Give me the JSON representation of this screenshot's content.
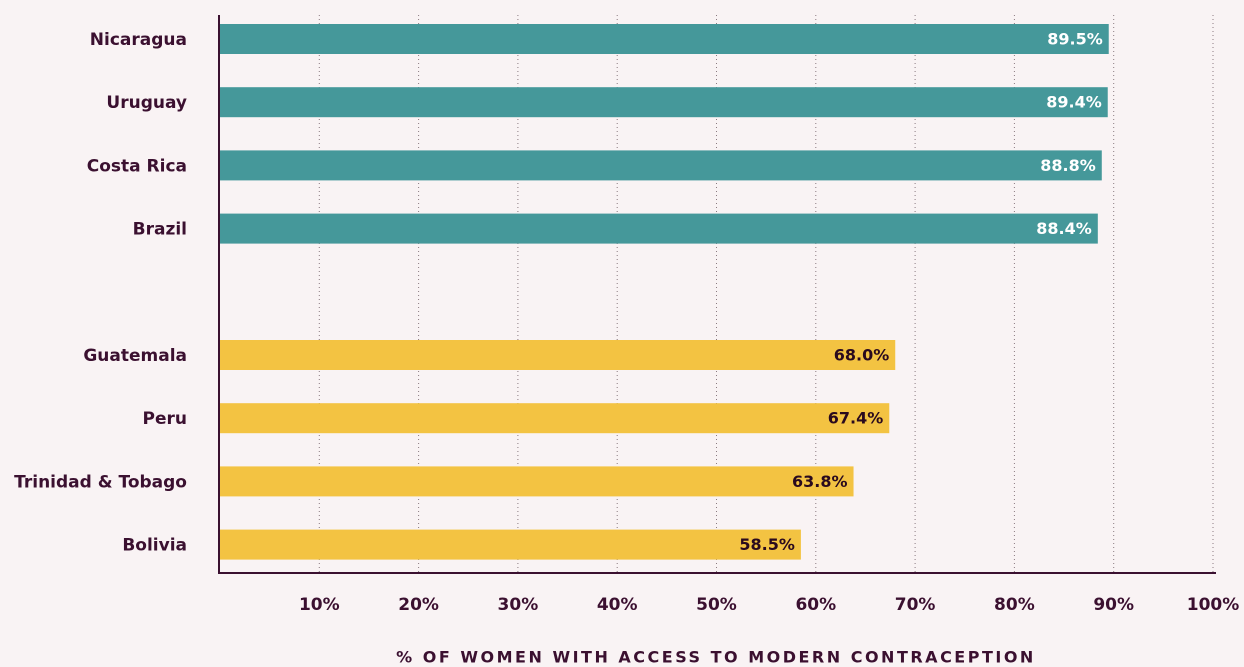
{
  "chart_data": {
    "type": "bar",
    "orientation": "horizontal",
    "categories": [
      "Nicaragua",
      "Uruguay",
      "Costa Rica",
      "Brazil",
      null,
      "Guatemala",
      "Peru",
      "Trinidad & Tobago",
      "Bolivia"
    ],
    "values": [
      89.5,
      89.4,
      88.8,
      88.4,
      null,
      68.0,
      67.4,
      63.8,
      58.5
    ],
    "value_labels": [
      "89.5%",
      "89.4%",
      "88.8%",
      "88.4%",
      null,
      "68.0%",
      "67.4%",
      "63.8%",
      "58.5%"
    ],
    "colors": [
      "#45989a",
      "#45989a",
      "#45989a",
      "#45989a",
      null,
      "#f3c342",
      "#f3c342",
      "#f3c342",
      "#f3c342"
    ],
    "value_label_colors": [
      "#ffffff",
      "#ffffff",
      "#ffffff",
      "#ffffff",
      null,
      "#2a0a1e",
      "#2a0a1e",
      "#2a0a1e",
      "#2a0a1e"
    ],
    "xlabel": "% OF WOMEN WITH ACCESS TO MODERN CONTRACEPTION",
    "xlim": [
      0,
      100
    ],
    "xticks": [
      {
        "value": 10,
        "label": "10%"
      },
      {
        "value": 20,
        "label": "20%"
      },
      {
        "value": 30,
        "label": "30%"
      },
      {
        "value": 40,
        "label": "40%"
      },
      {
        "value": 50,
        "label": "50%"
      },
      {
        "value": 60,
        "label": "60%"
      },
      {
        "value": 70,
        "label": "70%"
      },
      {
        "value": 80,
        "label": "80%"
      },
      {
        "value": 90,
        "label": "90%"
      },
      {
        "value": 100,
        "label": "100%"
      }
    ],
    "grid": true
  }
}
